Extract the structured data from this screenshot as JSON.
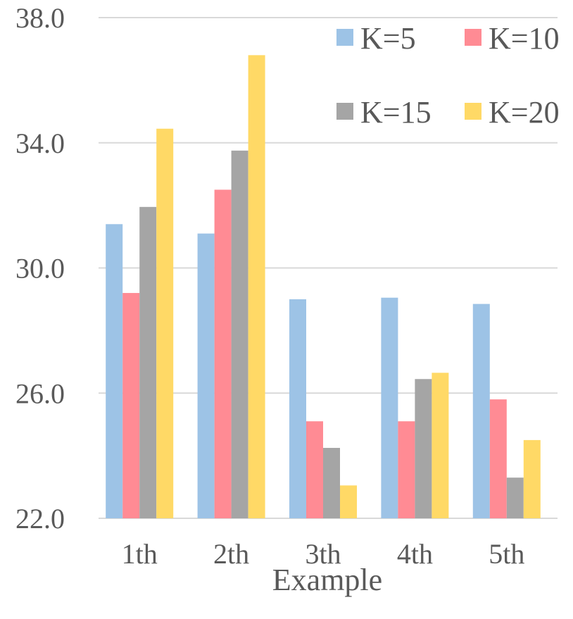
{
  "chart_data": {
    "type": "bar",
    "title": "",
    "xlabel": "Example",
    "ylabel": "",
    "categories": [
      "1th",
      "2th",
      "3th",
      "4th",
      "5th"
    ],
    "ylim": [
      22.0,
      38.0
    ],
    "yticks": [
      "22.0",
      "26.0",
      "30.0",
      "34.0",
      "38.0"
    ],
    "ytick_values": [
      22,
      26,
      30,
      34,
      38
    ],
    "grid": true,
    "legend_position": "top-right",
    "series": [
      {
        "name": "K=5",
        "color": "#9dc3e6",
        "values": [
          31.4,
          31.1,
          29.0,
          29.05,
          28.85
        ]
      },
      {
        "name": "K=10",
        "color": "#ff8b94",
        "values": [
          29.2,
          32.5,
          25.1,
          25.1,
          25.8
        ]
      },
      {
        "name": "K=15",
        "color": "#a5a5a5",
        "values": [
          31.95,
          33.75,
          24.25,
          26.45,
          23.3
        ]
      },
      {
        "name": "K=20",
        "color": "#ffd966",
        "values": [
          34.45,
          36.8,
          23.05,
          26.65,
          24.5
        ]
      }
    ]
  }
}
